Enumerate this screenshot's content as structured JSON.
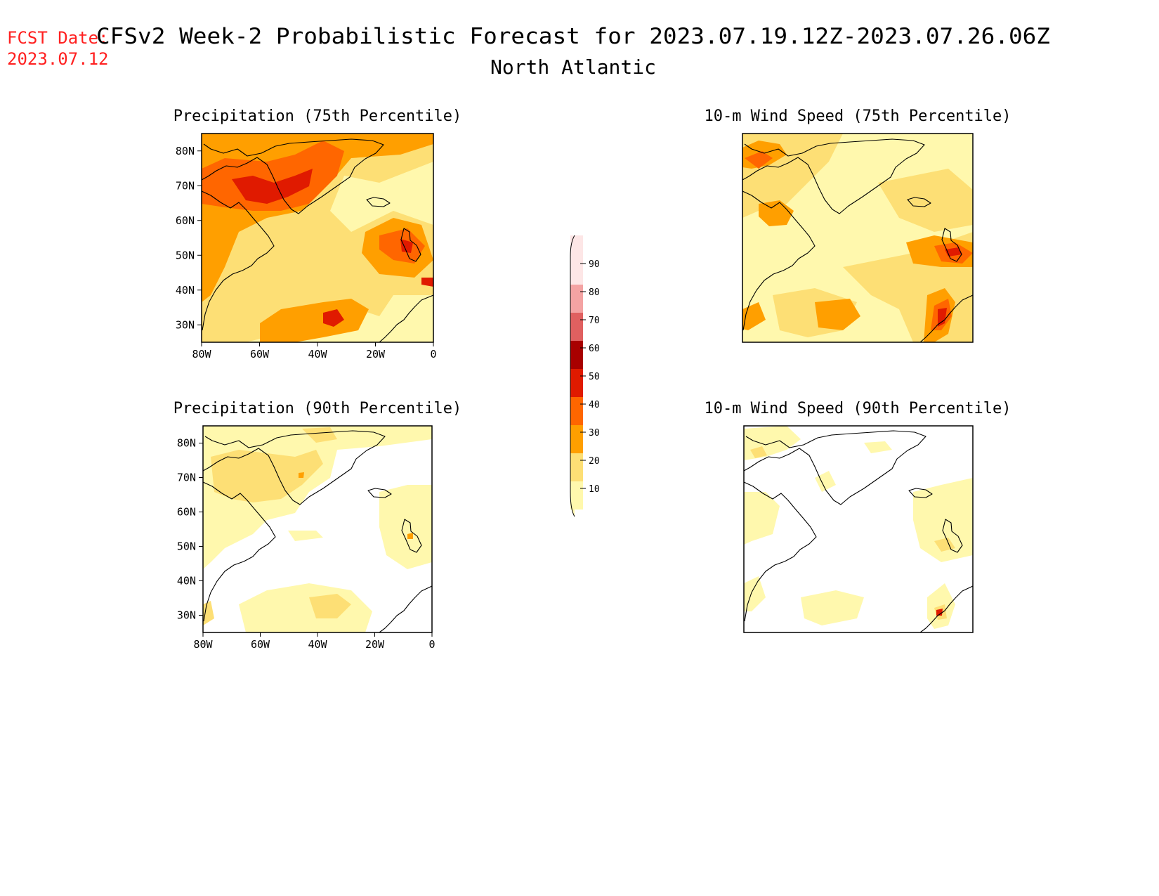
{
  "header": {
    "fcst_label": "FCST Date:",
    "fcst_date": "2023.07.12",
    "title": "CFSv2 Week-2 Probabilistic Forecast for 2023.07.19.12Z-2023.07.26.06Z",
    "subtitle": "North Atlantic"
  },
  "axes": {
    "lat_labels": [
      "80N",
      "70N",
      "60N",
      "50N",
      "40N",
      "30N"
    ],
    "lon_labels": [
      "80W",
      "60W",
      "40W",
      "20W",
      "0"
    ],
    "lat_values": [
      80,
      70,
      60,
      50,
      40,
      30
    ],
    "lon_values": [
      -80,
      -60,
      -40,
      -20,
      0
    ],
    "lat_range": [
      25,
      85
    ],
    "lon_range": [
      -80,
      0
    ]
  },
  "panels": [
    {
      "id": "precip75",
      "title": "Precipitation (75th Percentile)",
      "level": "high"
    },
    {
      "id": "wind75",
      "title": "10-m Wind Speed (75th Percentile)",
      "level": "mid"
    },
    {
      "id": "precip90",
      "title": "Precipitation (90th Percentile)",
      "level": "low"
    },
    {
      "id": "wind90",
      "title": "10-m Wind Speed (90th Percentile)",
      "level": "verylow"
    }
  ],
  "colorbar": {
    "labels": [
      "90",
      "80",
      "70",
      "60",
      "50",
      "40",
      "30",
      "20",
      "10"
    ],
    "colors": [
      "#fde6e6",
      "#f4a3a3",
      "#e06060",
      "#a80000",
      "#e01a00",
      "#ff6600",
      "#ff9f00",
      "#fddf75",
      "#fff8ad"
    ]
  }
}
